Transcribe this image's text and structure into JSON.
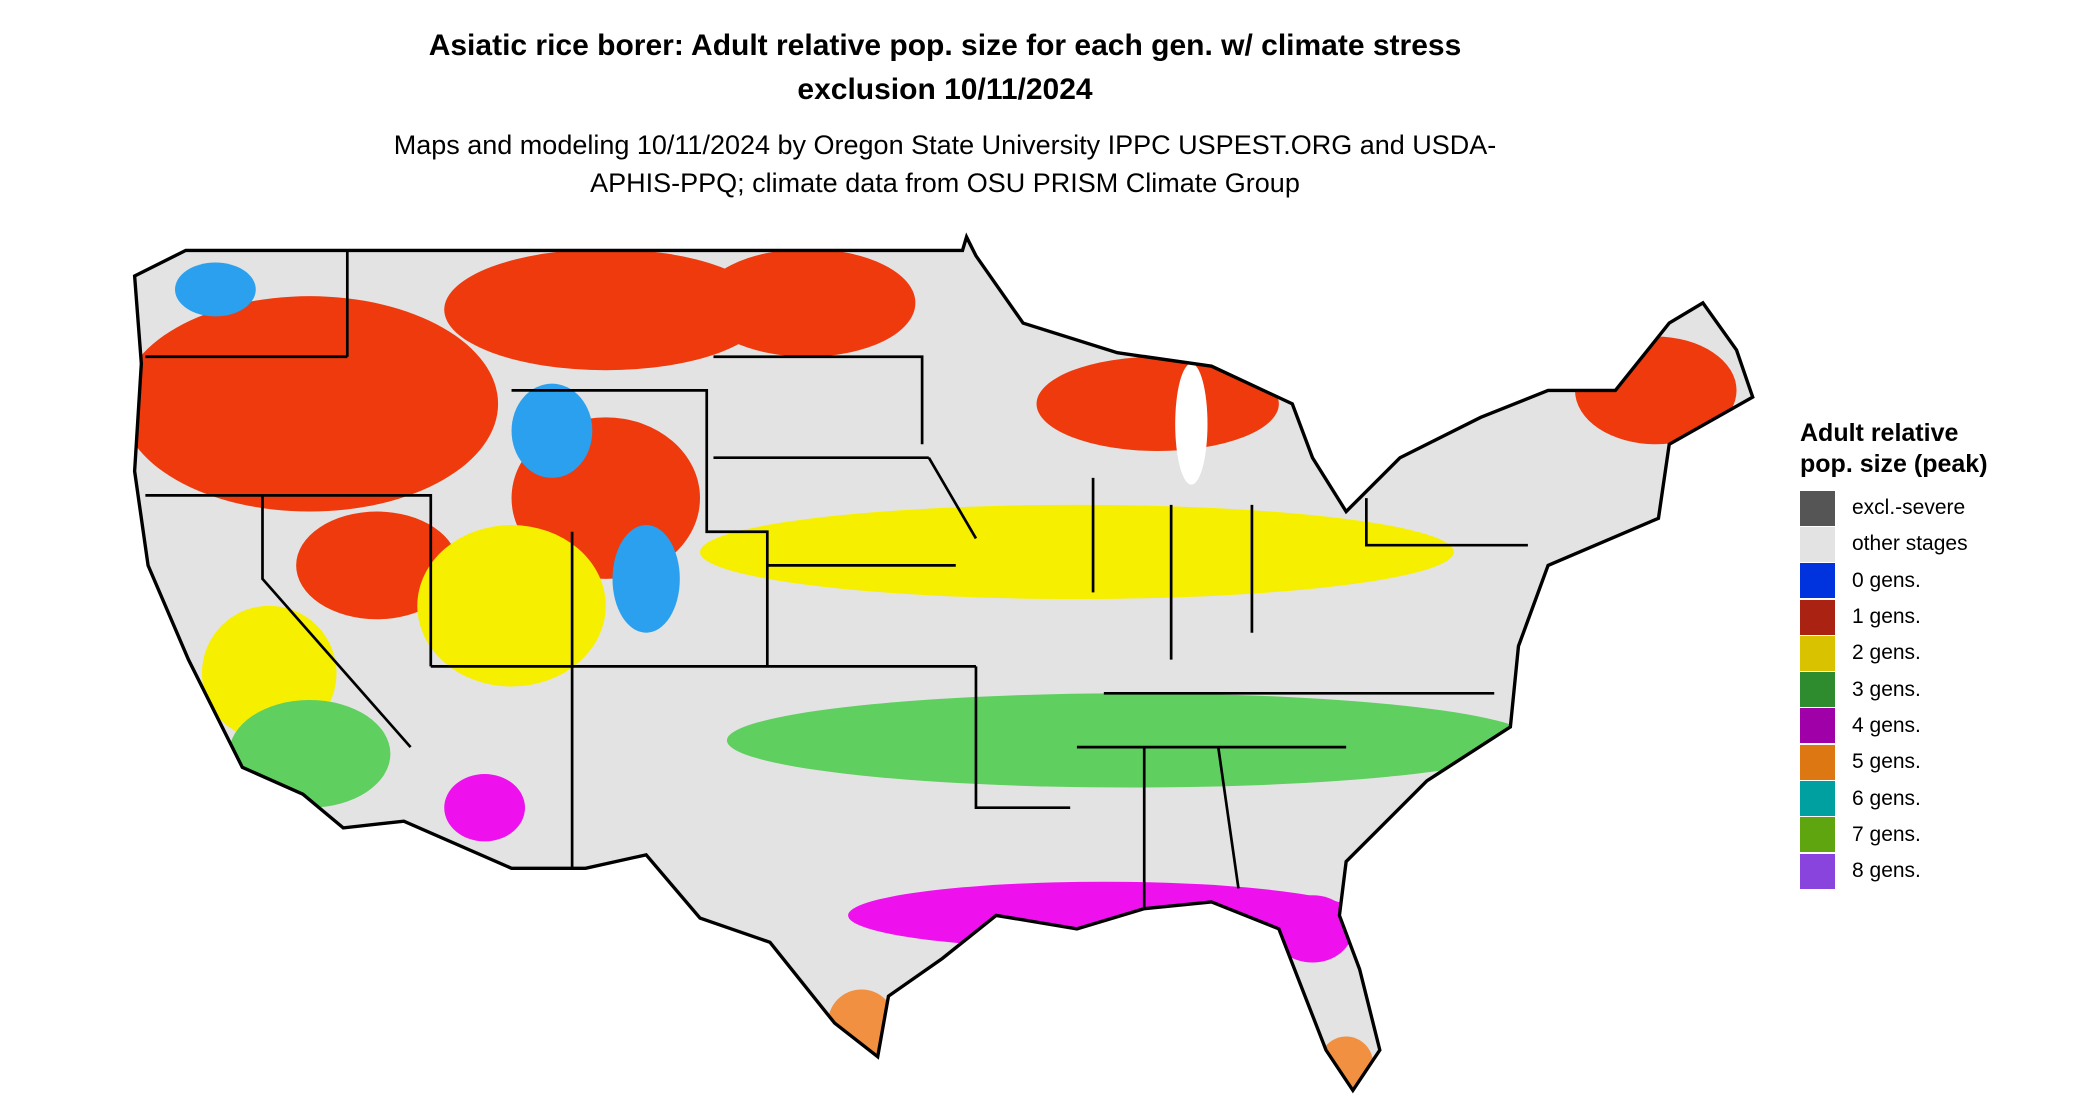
{
  "title": "Asiatic rice borer: Adult relative pop. size for each gen. w/ climate stress exclusion 10/11/2024",
  "subtitle": "Maps and modeling 10/11/2024 by Oregon State University IPPC USPEST.ORG and USDA-APHIS-PPQ; climate data from OSU PRISM Climate Group",
  "legend": {
    "title": "Adult relative pop. size (peak)",
    "items": [
      {
        "label": "excl.-severe",
        "color": "#555555"
      },
      {
        "label": "other stages",
        "color": "#e3e3e3"
      },
      {
        "label": "0 gens.",
        "color": "#0033dd"
      },
      {
        "label": "1 gens.",
        "color": "#aa2211"
      },
      {
        "label": "2 gens.",
        "color": "#d9c200"
      },
      {
        "label": "3 gens.",
        "color": "#2e8b2e"
      },
      {
        "label": "4 gens.",
        "color": "#a000a8"
      },
      {
        "label": "5 gens.",
        "color": "#dd7711"
      },
      {
        "label": "6 gens.",
        "color": "#00a0a0"
      },
      {
        "label": "7 gens.",
        "color": "#5fa510"
      },
      {
        "label": "8 gens.",
        "color": "#8844dd"
      }
    ]
  }
}
